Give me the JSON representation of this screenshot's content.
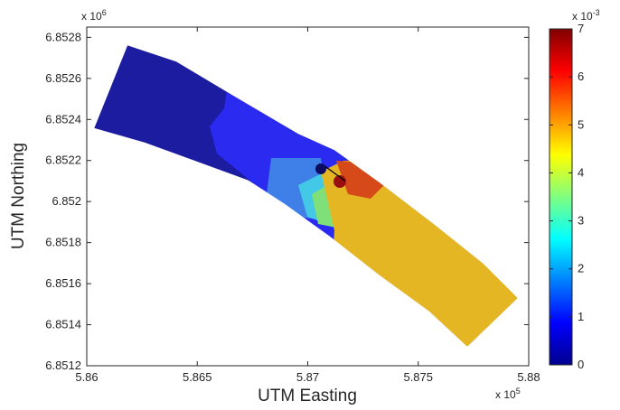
{
  "chart_data": {
    "type": "heatmap",
    "title": "",
    "xlabel": "UTM Easting",
    "ylabel": "UTM Northing",
    "xlim": [
      586000,
      588000
    ],
    "ylim": [
      6851200,
      6852850
    ],
    "x_ticks": [
      "5.86",
      "5.865",
      "5.87",
      "5.875",
      "5.88"
    ],
    "x_tick_values": [
      586000,
      586500,
      587000,
      587500,
      588000
    ],
    "x_exponent": "x 10",
    "x_exponent_power": "5",
    "y_ticks": [
      "6.8512",
      "6.8514",
      "6.8516",
      "6.8518",
      "6.852",
      "6.8522",
      "6.8524",
      "6.8526",
      "6.8528"
    ],
    "y_tick_values": [
      6851200,
      6851400,
      6851600,
      6851800,
      6852000,
      6852200,
      6852400,
      6852600,
      6852800
    ],
    "y_exponent": "x 10",
    "y_exponent_power": "6",
    "colorbar": {
      "min": 0,
      "max": 0.007,
      "colormap": "jet",
      "ticks": [
        "0",
        "1",
        "2",
        "3",
        "4",
        "5",
        "6",
        "7"
      ],
      "tick_values": [
        0,
        0.001,
        0.002,
        0.003,
        0.004,
        0.005,
        0.006,
        0.007
      ],
      "exponent": "x 10",
      "exponent_power": "-3"
    },
    "field": {
      "description_visible": "curved channel domain colored by value",
      "upstream_value": 0.0005,
      "mid_value": 0.0012,
      "downstream_value": 0.0051,
      "near_structure_high_value": 0.0057,
      "structure_x": [
        587080,
        587170
      ],
      "structure_y": [
        6852170,
        6852100
      ]
    },
    "grid": false,
    "legend": "none"
  }
}
